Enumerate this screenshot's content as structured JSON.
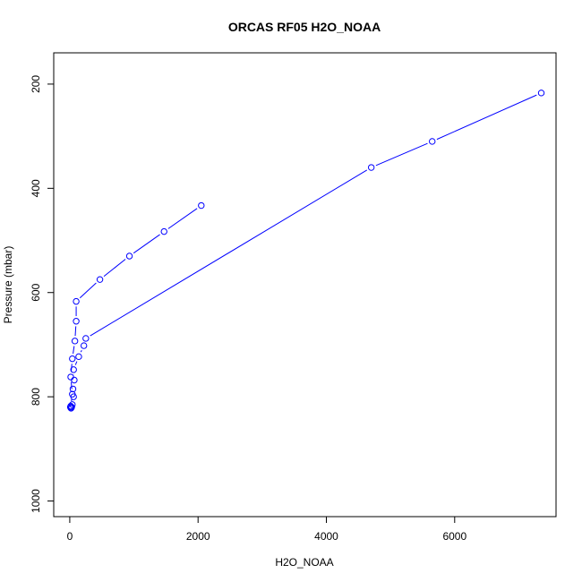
{
  "chart_data": {
    "type": "line",
    "title": "ORCAS RF05 H2O_NOAA",
    "xlabel": "H2O_NOAA",
    "ylabel": "Pressure (mbar)",
    "xlim": [
      -250,
      7580
    ],
    "ylim": [
      1030,
      140
    ],
    "y_inverted": true,
    "x_ticks": [
      0,
      2000,
      4000,
      6000
    ],
    "x_tick_labels": [
      "0",
      "2000",
      "4000",
      "6000"
    ],
    "y_ticks": [
      200,
      400,
      600,
      800,
      1000
    ],
    "y_tick_labels": [
      "200",
      "400",
      "600",
      "800",
      "1000"
    ],
    "grid": false,
    "legend": "none",
    "series_color": "#0000ff",
    "series": [
      {
        "x": [
          7350,
          5650,
          4700,
          250,
          220,
          140,
          60,
          70,
          50,
          60,
          40,
          10,
          20,
          30
        ],
        "y": [
          217,
          310,
          360,
          688,
          702,
          723,
          748,
          768,
          785,
          800,
          815,
          820,
          822,
          820
        ]
      },
      {
        "x": [
          2050,
          1470,
          930,
          470,
          100,
          100,
          80,
          40,
          15,
          40,
          15
        ],
        "y": [
          433,
          483,
          530,
          575,
          617,
          655,
          693,
          727,
          762,
          795,
          818
        ]
      }
    ]
  }
}
